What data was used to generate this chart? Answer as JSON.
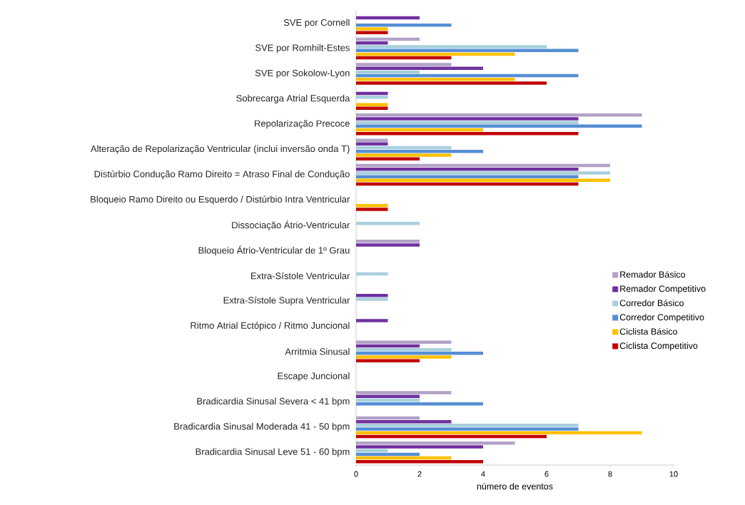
{
  "chart_data": {
    "type": "bar",
    "orientation": "horizontal",
    "xlabel": "número de eventos",
    "categories": [
      "SVE por Cornell",
      "SVE por Romhilt-Estes",
      "SVE por Sokolow-Lyon",
      "Sobrecarga Atrial Esquerda",
      "Repolarização Precoce",
      "Alteração de Repolarização Ventricular (inclui inversão onda T)",
      "Distúrbio Condução Ramo Direito = Atraso Final de Condução",
      "Bloqueio Ramo Direito ou Esquerdo / Distúrbio Intra Ventricular",
      "Dissociação Átrio-Ventricular",
      "Bloqueio Átrio-Ventricular de 1º Grau",
      "Extra-Sístole Ventricular",
      "Extra-Sístole Supra Ventricular",
      "Ritmo Atrial Ectópico / Ritmo Juncional",
      "Arritmia Sinusal",
      "Escape Juncional",
      "Bradicardia Sinusal Severa < 41 bpm",
      "Bradicardia Sinusal Moderada 41 - 50 bpm",
      "Bradicardia Sinusal Leve 51 - 60 bpm"
    ],
    "series": [
      {
        "name": "Remador Básico",
        "color": "#b3a2c7",
        "values": [
          0,
          2,
          3,
          0,
          9,
          1,
          8,
          0,
          0,
          2,
          0,
          0,
          0,
          3,
          0,
          3,
          2,
          5
        ]
      },
      {
        "name": "Remador Competitivo",
        "color": "#7030a0",
        "values": [
          2,
          1,
          4,
          1,
          7,
          1,
          7,
          0,
          0,
          2,
          0,
          1,
          1,
          2,
          0,
          2,
          3,
          4
        ]
      },
      {
        "name": "Corredor Básico",
        "color": "#a9cfdc",
        "values": [
          0,
          6,
          2,
          1,
          7,
          3,
          8,
          0,
          2,
          0,
          1,
          1,
          0,
          3,
          0,
          2,
          7,
          1
        ]
      },
      {
        "name": "Corredor Competitivo",
        "color": "#558ed5",
        "values": [
          3,
          7,
          7,
          0,
          9,
          4,
          7,
          0,
          0,
          0,
          0,
          0,
          0,
          4,
          0,
          4,
          7,
          2
        ]
      },
      {
        "name": "Ciclista Básico",
        "color": "#ffc000",
        "values": [
          1,
          5,
          5,
          1,
          4,
          3,
          8,
          1,
          0,
          0,
          0,
          0,
          0,
          3,
          0,
          0,
          9,
          3
        ]
      },
      {
        "name": "Ciclista Competitivo",
        "color": "#c00000",
        "values": [
          1,
          3,
          6,
          1,
          7,
          2,
          7,
          1,
          0,
          0,
          0,
          0,
          0,
          2,
          0,
          0,
          6,
          4
        ]
      }
    ],
    "xlim": [
      0,
      10
    ],
    "xticks": [
      0,
      2,
      4,
      6,
      8,
      10
    ],
    "legend": "right"
  }
}
